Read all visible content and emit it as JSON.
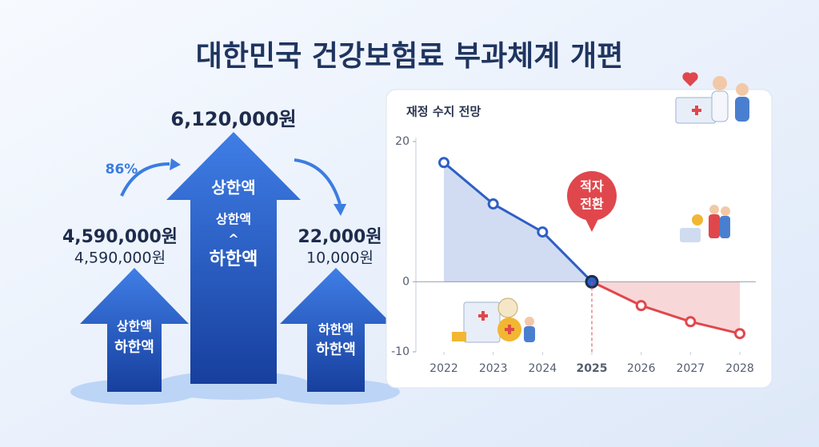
{
  "title": "대한민국 건강보험료 부과체계 개편",
  "arrows": [
    {
      "top_label": "4,590,000원",
      "sub_label": "4,590,000원",
      "inner": [
        "상한액",
        "하한액"
      ]
    },
    {
      "top_label": "6,120,000원",
      "inner": [
        "상한액",
        "상한액",
        "^",
        "하한액"
      ]
    },
    {
      "top_label": "22,000원",
      "sub_label": "10,000원",
      "inner": [
        "하한액",
        "하한액"
      ]
    }
  ],
  "growth_label": "86%",
  "chart_data": {
    "type": "line",
    "title": "재정 수지 전망",
    "x": [
      2022,
      2023,
      2024,
      2025,
      2026,
      2027,
      2028
    ],
    "xlim": [
      2022,
      2028
    ],
    "xticks": [
      2022,
      2023,
      2024,
      2025,
      2026,
      2027,
      2028
    ],
    "series": [
      {
        "color": "#2f5fc4",
        "negative_color": "#e0474c",
        "values": [
          17,
          11.1,
          7.1,
          0,
          -3.4,
          -5.7,
          -7.4
        ]
      }
    ],
    "ylim": [
      -10,
      20
    ],
    "yticks": [
      -10,
      0,
      20
    ],
    "annotation": {
      "lines": [
        "적자",
        "전환"
      ],
      "x": 2025
    }
  }
}
